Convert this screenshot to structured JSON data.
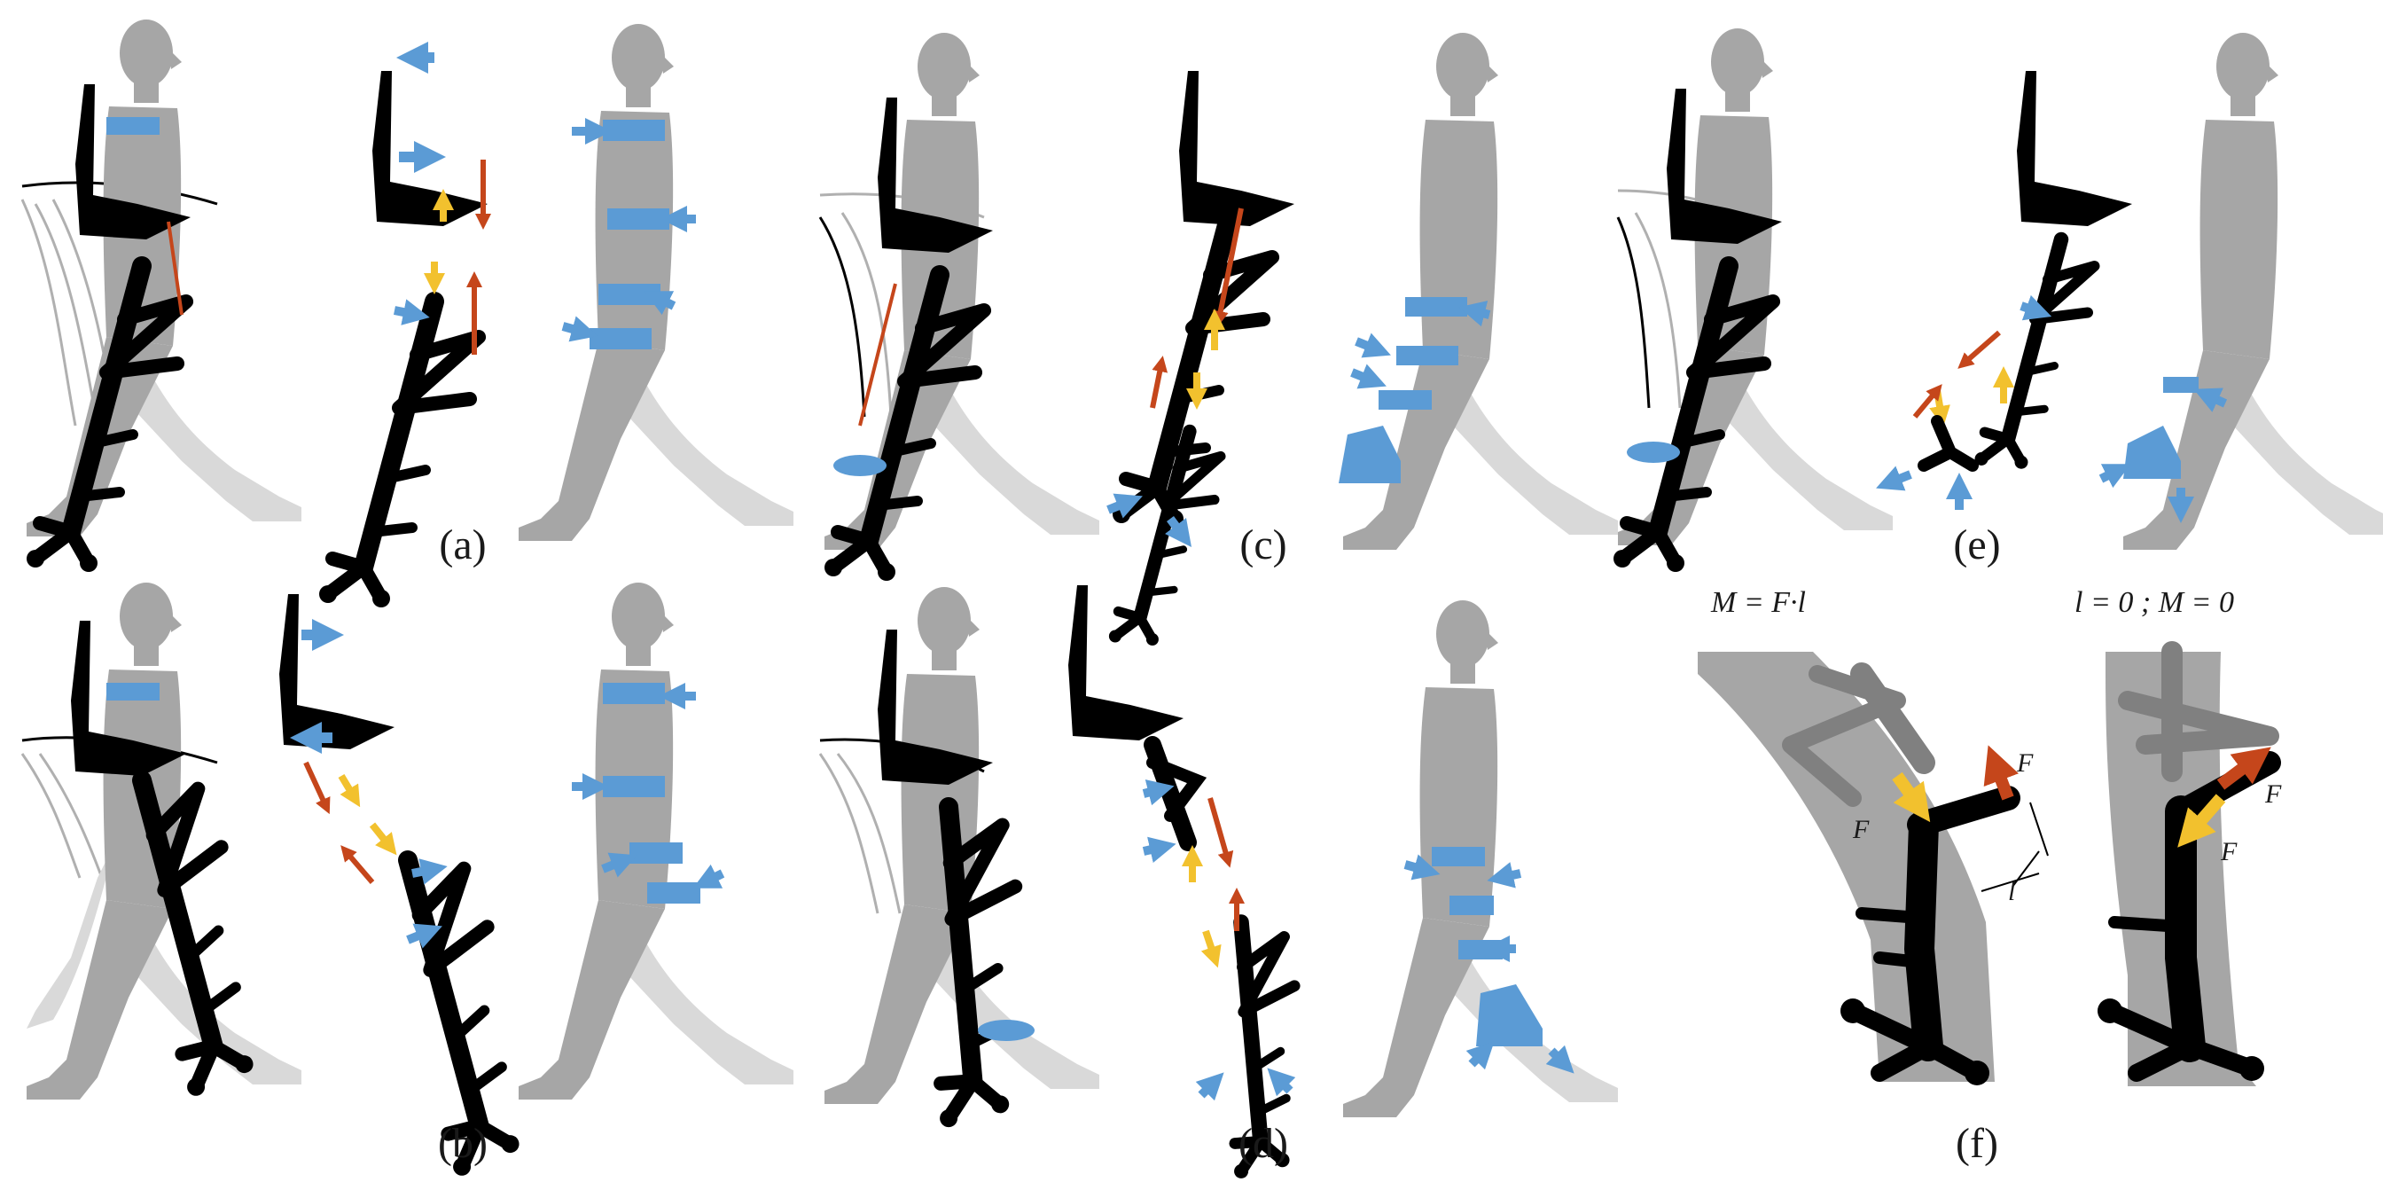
{
  "panels": [
    {
      "id": "a",
      "label": "(a)"
    },
    {
      "id": "b",
      "label": "(b)"
    },
    {
      "id": "c",
      "label": "(c)"
    },
    {
      "id": "d",
      "label": "(d)"
    },
    {
      "id": "e",
      "label": "(e)"
    },
    {
      "id": "f",
      "label": "(f)"
    }
  ],
  "panel_f": {
    "formula_left": "M = F·l",
    "formula_right": "l = 0 ; M = 0",
    "force_label": "F",
    "lever_label": "l"
  },
  "colors": {
    "human": "#a6a6a6",
    "human_trailing_leg": "#d9d9d9",
    "exoskeleton": "#000000",
    "contact_band": "#5b9bd5",
    "yellow_force": "#f2c12e",
    "red_force": "#c5461b",
    "chair_outline": "#b0b0b0"
  }
}
